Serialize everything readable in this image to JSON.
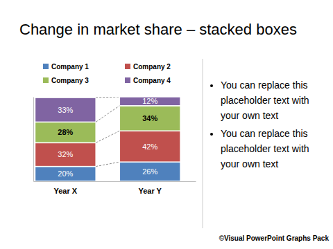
{
  "chart_data": {
    "type": "bar",
    "title": "Change in market share – stacked boxes",
    "categories": [
      "Year X",
      "Year Y"
    ],
    "series": [
      {
        "name": "Company 1",
        "color": "#4f81bd",
        "values": [
          20,
          26
        ],
        "value_labels": [
          "20%",
          "26%"
        ]
      },
      {
        "name": "Company 2",
        "color": "#c0504d",
        "values": [
          32,
          42
        ],
        "value_labels": [
          "32%",
          "42%"
        ]
      },
      {
        "name": "Company 3",
        "color": "#9bbb59",
        "values": [
          28,
          34
        ],
        "value_labels": [
          "28%",
          "34%"
        ]
      },
      {
        "name": "Company 4",
        "color": "#8064a2",
        "values": [
          33,
          12
        ],
        "value_labels": [
          "33%",
          "12%"
        ]
      }
    ],
    "stacked": true,
    "data_labels": true,
    "legend": "top",
    "tick_labels": "x",
    "ylim": [
      0,
      114
    ]
  },
  "bullets": [
    "You can replace this placeholder text with your own text",
    "You can replace this placeholder text with your own text"
  ],
  "footer": "©Visual PowerPoint Graphs Pack"
}
